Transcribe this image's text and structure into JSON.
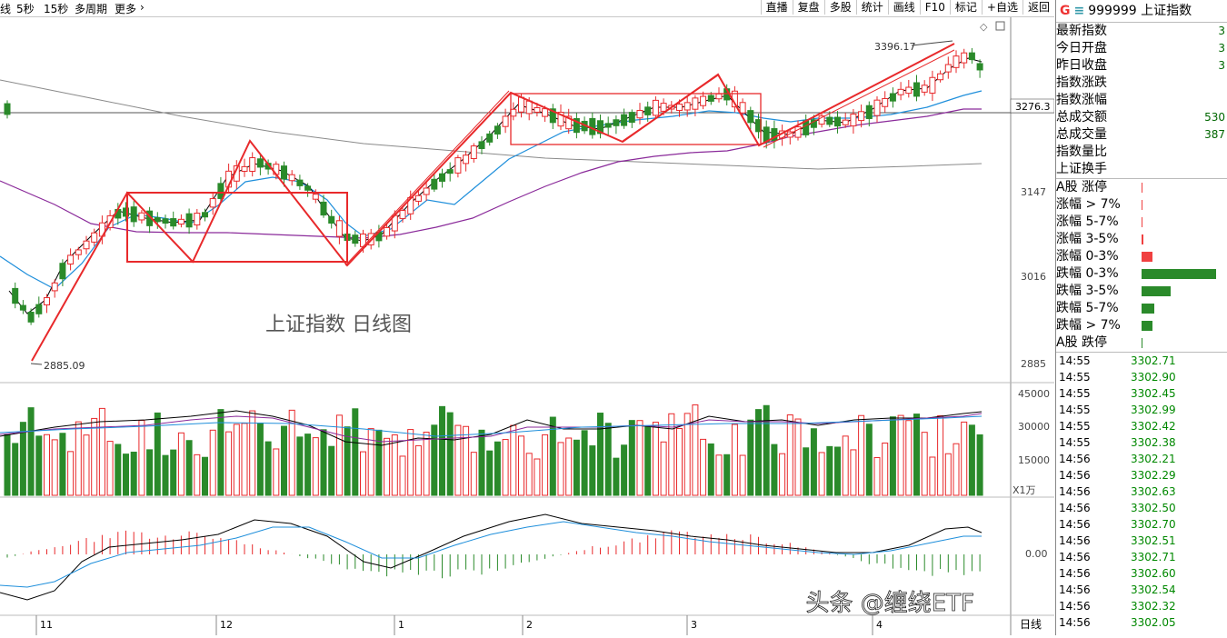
{
  "toolbar": {
    "periods": [
      "线",
      "5秒",
      "15秒",
      "多周期",
      "更多",
      "›"
    ],
    "tools": [
      "直播",
      "复盘",
      "多股",
      "统计",
      "画线",
      "F10",
      "标记",
      "+自选",
      "返回"
    ]
  },
  "chart": {
    "title_annotation": "上证指数 日线图",
    "high_label": "3396.17",
    "low_label": "2885.09",
    "price_ticks": [
      "3276.3",
      "3147",
      "3016",
      "2885"
    ],
    "last_price_tag": "3276.3",
    "volume_ticks": [
      "45000",
      "30000",
      "15000"
    ],
    "volume_unit": "X1万",
    "macd_tick": "0.00",
    "months": [
      "11",
      "12",
      "1",
      "2",
      "3",
      "4"
    ],
    "period_label": "日线",
    "watermark": "头条 @缠绕ETF",
    "colors": {
      "up": "#e8292b",
      "down": "#2a8a2a",
      "ma5": "#000000",
      "ma10": "#1f8fdb",
      "ma20": "#8a2a9a",
      "ma60": "#808080"
    }
  },
  "panel": {
    "code": "999999",
    "name": "上证指数",
    "stats": [
      {
        "label": "最新指数",
        "value": "3"
      },
      {
        "label": "今日开盘",
        "value": "3"
      },
      {
        "label": "昨日收盘",
        "value": "3"
      },
      {
        "label": "指数涨跌",
        "value": ""
      },
      {
        "label": "指数涨幅",
        "value": ""
      },
      {
        "label": "总成交额",
        "value": "530"
      },
      {
        "label": "总成交量",
        "value": "387"
      },
      {
        "label": "指数量比",
        "value": ""
      },
      {
        "label": "上证换手",
        "value": ""
      }
    ],
    "distribution": [
      {
        "label": "A股 涨停",
        "kind": "up",
        "level": 0.01
      },
      {
        "label": "涨幅 > 7%",
        "kind": "up",
        "level": 0.01
      },
      {
        "label": "涨幅 5-7%",
        "kind": "up",
        "level": 0.01
      },
      {
        "label": "涨幅 3-5%",
        "kind": "up",
        "level": 0.02
      },
      {
        "label": "涨幅 0-3%",
        "kind": "up",
        "level": 0.15
      },
      {
        "label": "跌幅 0-3%",
        "kind": "down",
        "level": 1.0
      },
      {
        "label": "跌幅 3-5%",
        "kind": "down",
        "level": 0.39
      },
      {
        "label": "跌幅 5-7%",
        "kind": "down",
        "level": 0.17
      },
      {
        "label": "跌幅 > 7%",
        "kind": "down",
        "level": 0.15
      },
      {
        "label": "A股 跌停",
        "kind": "down",
        "level": 0.01
      }
    ],
    "ticks": [
      {
        "time": "14:55",
        "price": "3302.71"
      },
      {
        "time": "14:55",
        "price": "3302.90"
      },
      {
        "time": "14:55",
        "price": "3302.45"
      },
      {
        "time": "14:55",
        "price": "3302.99"
      },
      {
        "time": "14:55",
        "price": "3302.42"
      },
      {
        "time": "14:55",
        "price": "3302.38"
      },
      {
        "time": "14:56",
        "price": "3302.21"
      },
      {
        "time": "14:56",
        "price": "3302.29"
      },
      {
        "time": "14:56",
        "price": "3302.63"
      },
      {
        "time": "14:56",
        "price": "3302.50"
      },
      {
        "time": "14:56",
        "price": "3302.70"
      },
      {
        "time": "14:56",
        "price": "3302.51"
      },
      {
        "time": "14:56",
        "price": "3302.71"
      },
      {
        "time": "14:56",
        "price": "3302.60"
      },
      {
        "time": "14:56",
        "price": "3302.54"
      },
      {
        "time": "14:56",
        "price": "3302.32"
      },
      {
        "time": "14:56",
        "price": "3302.05"
      }
    ]
  }
}
